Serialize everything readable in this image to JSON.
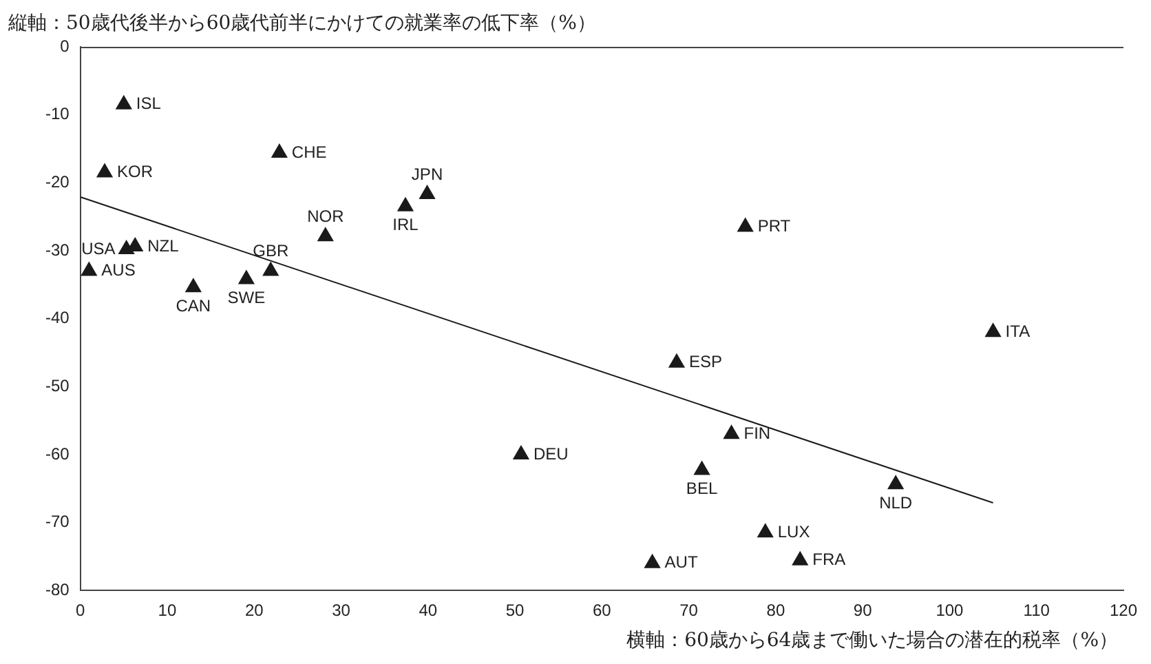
{
  "chart_data": {
    "type": "scatter",
    "ylabel": "縦軸：50歳代後半から60歳代前半にかけての就業率の低下率（%）",
    "xlabel": "横軸：60歳から64歳まで働いた場合の潜在的税率（%）",
    "xlim": [
      0,
      120
    ],
    "xticks": [
      0,
      10,
      20,
      30,
      40,
      50,
      60,
      70,
      80,
      90,
      100,
      110,
      120
    ],
    "ylim": [
      -80,
      0
    ],
    "yticks": [
      -80,
      -70,
      -60,
      -50,
      -40,
      -30,
      -20,
      -10,
      0
    ],
    "grid": false,
    "legend": false,
    "marker": "triangle",
    "series": [
      {
        "type": "scatter",
        "color": "#1a1a1a",
        "x": [
          5,
          2.8,
          22.9,
          39.9,
          37.4,
          28.2,
          76.5,
          5.3,
          6.3,
          1,
          21.9,
          19.1,
          13,
          105,
          68.6,
          74.9,
          50.7,
          71.5,
          93.8,
          78.8,
          65.8,
          82.8
        ],
        "values": [
          -8.5,
          -18.5,
          -15.6,
          -21.7,
          -23.5,
          -27.9,
          -26.5,
          -29.8,
          -29.4,
          -33,
          -33,
          -34.2,
          -35.4,
          -42,
          -46.5,
          -57,
          -60,
          -62.3,
          -64.4,
          -71.5,
          -76,
          -75.6
        ]
      },
      {
        "type": "line",
        "color": "#1a1a1a",
        "marker": "none",
        "x": [
          0,
          105
        ],
        "values": [
          -22.1,
          -67.1
        ]
      }
    ],
    "annotations": [
      {
        "text": "ISL",
        "x": 5,
        "y": -8.5
      },
      {
        "text": "KOR",
        "x": 2.8,
        "y": -18.5
      },
      {
        "text": "CHE",
        "x": 22.9,
        "y": -15.6
      },
      {
        "text": "JPN",
        "x": 39.9,
        "y": -21.7
      },
      {
        "text": "IRL",
        "x": 37.4,
        "y": -23.5
      },
      {
        "text": "NOR",
        "x": 28.2,
        "y": -27.9
      },
      {
        "text": "PRT",
        "x": 76.5,
        "y": -26.5
      },
      {
        "text": "USA",
        "x": 5.3,
        "y": -29.8
      },
      {
        "text": "NZL",
        "x": 6.3,
        "y": -29.4
      },
      {
        "text": "AUS",
        "x": 1,
        "y": -33
      },
      {
        "text": "GBR",
        "x": 21.9,
        "y": -33
      },
      {
        "text": "SWE",
        "x": 19.1,
        "y": -34.2
      },
      {
        "text": "CAN",
        "x": 13,
        "y": -35.4
      },
      {
        "text": "ITA",
        "x": 105,
        "y": -42
      },
      {
        "text": "ESP",
        "x": 68.6,
        "y": -46.5
      },
      {
        "text": "FIN",
        "x": 74.9,
        "y": -57
      },
      {
        "text": "DEU",
        "x": 50.7,
        "y": -60
      },
      {
        "text": "BEL",
        "x": 71.5,
        "y": -62.3
      },
      {
        "text": "NLD",
        "x": 93.8,
        "y": -64.4
      },
      {
        "text": "LUX",
        "x": 78.8,
        "y": -71.5
      },
      {
        "text": "AUT",
        "x": 65.8,
        "y": -76
      },
      {
        "text": "FRA",
        "x": 82.8,
        "y": -75.6
      }
    ]
  }
}
